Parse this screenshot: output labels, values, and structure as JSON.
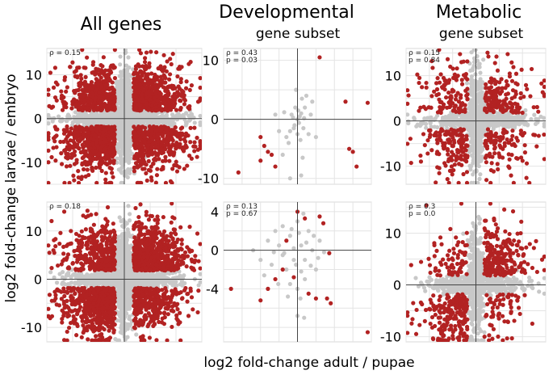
{
  "figure": {
    "xlabel": "log2 fold-change adult / pupae",
    "ylabel": "log2 fold-change larvae / embryo"
  },
  "columns": [
    {
      "title": "All genes",
      "subtitle": ""
    },
    {
      "title": "Developmental",
      "subtitle": "gene subset"
    },
    {
      "title": "Metabolic",
      "subtitle": "gene subset"
    }
  ],
  "colors": {
    "significant": "#b22222",
    "nonsignificant": "#c8c8c8"
  },
  "chart_data": [
    {
      "type": "scatter",
      "panel": "all-genes-top",
      "rho_label": "ρ = 0.15",
      "p_label": "",
      "xlim": [
        -15,
        15
      ],
      "ylim": [
        -15,
        16
      ],
      "yticks": [
        -10,
        0,
        10
      ],
      "points": {
        "mode": "cloud",
        "n_bg": 1400,
        "n_sig": 1900,
        "corr": 0.15,
        "spread": 5.0,
        "seed": 11
      }
    },
    {
      "type": "scatter",
      "panel": "developmental-top",
      "rho_label": "ρ = 0.43",
      "p_label": "p = 0.03",
      "xlim": [
        -10,
        10
      ],
      "ylim": [
        -11,
        12
      ],
      "yticks": [
        -10,
        0,
        10
      ],
      "points": {
        "mode": "explicit",
        "sig": [
          [
            -8,
            -9
          ],
          [
            -5,
            -3
          ],
          [
            -4.5,
            -4.5
          ],
          [
            -4,
            -5.5
          ],
          [
            -3.5,
            -6
          ],
          [
            -3,
            -8
          ],
          [
            -5,
            -7
          ],
          [
            3,
            10.5
          ],
          [
            6.5,
            3
          ],
          [
            9.5,
            2.8
          ],
          [
            7,
            -5
          ],
          [
            7.5,
            -5.5
          ],
          [
            8,
            -8
          ]
        ],
        "bg": [
          [
            -1,
            -10
          ],
          [
            0.5,
            -9.5
          ],
          [
            -2,
            -6
          ],
          [
            -1.5,
            -3
          ],
          [
            -1,
            -2
          ],
          [
            -0.5,
            -1.5
          ],
          [
            0,
            0
          ],
          [
            0.3,
            0.5
          ],
          [
            0.5,
            1
          ],
          [
            1,
            2
          ],
          [
            1.2,
            4
          ],
          [
            2,
            3
          ],
          [
            -0.8,
            0.8
          ],
          [
            0.2,
            -0.6
          ],
          [
            0.8,
            -1.5
          ],
          [
            -0.3,
            2
          ],
          [
            1.5,
            -2.5
          ],
          [
            -1.2,
            -4
          ],
          [
            0.6,
            3.5
          ],
          [
            -0.4,
            -1
          ],
          [
            0.1,
            1.5
          ],
          [
            2.5,
            -3
          ],
          [
            -2.5,
            -2
          ],
          [
            0.9,
            0.2
          ],
          [
            -0.6,
            0.3
          ],
          [
            1.8,
            0.8
          ],
          [
            -1.8,
            1.2
          ],
          [
            0.4,
            -3.5
          ],
          [
            -0.2,
            5
          ],
          [
            -3,
            0.8
          ],
          [
            0.7,
            -6.5
          ],
          [
            0,
            -2.5
          ]
        ]
      }
    },
    {
      "type": "scatter",
      "panel": "metabolic-top",
      "rho_label": "ρ = 0.15",
      "p_label": "p = 0.84",
      "xlim": [
        -15,
        15
      ],
      "ylim": [
        -14,
        16
      ],
      "yticks": [
        -10,
        0,
        10
      ],
      "points": {
        "mode": "cloud",
        "n_bg": 900,
        "n_sig": 520,
        "corr": 0.15,
        "spread": 5.2,
        "seed": 23
      }
    },
    {
      "type": "scatter",
      "panel": "all-genes-bottom",
      "rho_label": "ρ = 0.18",
      "p_label": "",
      "xlim": [
        -15,
        15
      ],
      "ylim": [
        -13,
        16
      ],
      "yticks": [
        -10,
        0,
        10
      ],
      "points": {
        "mode": "cloud",
        "n_bg": 1400,
        "n_sig": 1900,
        "corr": 0.3,
        "spread": 4.6,
        "seed": 37
      }
    },
    {
      "type": "scatter",
      "panel": "developmental-bottom",
      "rho_label": "ρ = 0.13",
      "p_label": "p = 0.67",
      "xlim": [
        -10,
        10
      ],
      "ylim": [
        -9.5,
        5
      ],
      "yticks": [
        -4,
        0,
        4
      ],
      "points": {
        "mode": "explicit",
        "sig": [
          [
            -9,
            -4
          ],
          [
            -5,
            -5.2
          ],
          [
            -4,
            -4
          ],
          [
            -3,
            -3
          ],
          [
            -2,
            -2
          ],
          [
            -1.5,
            1
          ],
          [
            0,
            4
          ],
          [
            1,
            3.3
          ],
          [
            1.5,
            -4.5
          ],
          [
            2.5,
            -5
          ],
          [
            3,
            3.5
          ],
          [
            3.5,
            2.8
          ],
          [
            4,
            -5
          ],
          [
            4.5,
            -5.5
          ],
          [
            4.3,
            -0.3
          ],
          [
            9.5,
            -8.5
          ],
          [
            -0.5,
            -2.8
          ]
        ],
        "bg": [
          [
            -6,
            0
          ],
          [
            -5,
            -1
          ],
          [
            -4,
            1
          ],
          [
            -3.5,
            -1.5
          ],
          [
            -3,
            2
          ],
          [
            -2.5,
            0.5
          ],
          [
            -2,
            -0.5
          ],
          [
            -1.5,
            -2
          ],
          [
            -1,
            1.5
          ],
          [
            -0.5,
            -1
          ],
          [
            0,
            3
          ],
          [
            0.5,
            0.5
          ],
          [
            1,
            -1
          ],
          [
            1.5,
            2
          ],
          [
            2,
            0
          ],
          [
            2.5,
            -2
          ],
          [
            3,
            1
          ],
          [
            -1,
            -3.5
          ],
          [
            0,
            -4
          ],
          [
            1,
            -3
          ],
          [
            -2,
            2.5
          ],
          [
            0.5,
            -2.2
          ],
          [
            -0.5,
            0.2
          ],
          [
            1.2,
            0.8
          ],
          [
            -1.8,
            -0.3
          ],
          [
            0.2,
            1.8
          ],
          [
            -0.2,
            -1.5
          ],
          [
            2.2,
            1.5
          ],
          [
            -3.2,
            -0.2
          ],
          [
            1.8,
            -1.6
          ],
          [
            -0.8,
            2.2
          ],
          [
            0.8,
            3.8
          ],
          [
            -1.3,
            -4.8
          ],
          [
            0.4,
            -5
          ],
          [
            2.8,
            -0.8
          ],
          [
            -2.6,
            -3.5
          ],
          [
            0,
            -6.8
          ],
          [
            0.9,
            -7
          ],
          [
            -4.5,
            -2.6
          ],
          [
            3.6,
            -0.2
          ]
        ]
      }
    },
    {
      "type": "scatter",
      "panel": "metabolic-bottom",
      "rho_label": "ρ = 0.3",
      "p_label": "p = 0.0",
      "xlim": [
        -15,
        15
      ],
      "ylim": [
        -11,
        16
      ],
      "yticks": [
        0,
        10,
        -10
      ],
      "points": {
        "mode": "cloud",
        "n_bg": 900,
        "n_sig": 560,
        "corr": 0.5,
        "spread": 4.6,
        "seed": 51
      }
    }
  ]
}
